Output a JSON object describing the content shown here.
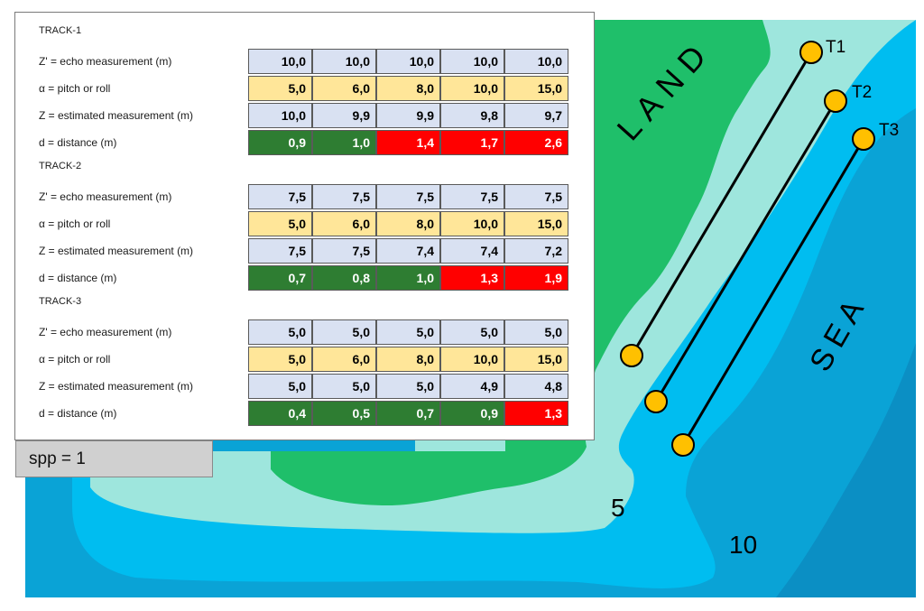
{
  "map": {
    "land_label": "LAND",
    "sea_label": "SEA",
    "contour_5_label": "5",
    "contour_10_label": "10",
    "tracks": [
      {
        "label": "T1"
      },
      {
        "label": "T2"
      },
      {
        "label": "T3"
      }
    ],
    "colors": {
      "land": "#1fbf6a",
      "shallow": "#9ee6dd",
      "mid": "#00bdf0",
      "deep": "#0aa3d6",
      "deepest": "#0b8fc4",
      "node": "#ffc000"
    }
  },
  "tables": [
    {
      "title": "TRACK-1",
      "rows": [
        {
          "label": "Z' = echo measurement (m)",
          "kind": "echo",
          "values": [
            "10,0",
            "10,0",
            "10,0",
            "10,0",
            "10,0"
          ]
        },
        {
          "label": "α = pitch or roll",
          "kind": "pitch",
          "values": [
            "5,0",
            "6,0",
            "8,0",
            "10,0",
            "15,0"
          ]
        },
        {
          "label": "Z = estimated measurement (m)",
          "kind": "est",
          "values": [
            "10,0",
            "9,9",
            "9,9",
            "9,8",
            "9,7"
          ]
        },
        {
          "label": "d = distance (m)",
          "kind": "dist",
          "values": [
            "0,9",
            "1,0",
            "1,4",
            "1,7",
            "2,6"
          ],
          "status": [
            "good",
            "good",
            "bad",
            "bad",
            "bad"
          ]
        }
      ]
    },
    {
      "title": "TRACK-2",
      "rows": [
        {
          "label": "Z' = echo measurement (m)",
          "kind": "echo",
          "values": [
            "7,5",
            "7,5",
            "7,5",
            "7,5",
            "7,5"
          ]
        },
        {
          "label": "α = pitch or roll",
          "kind": "pitch",
          "values": [
            "5,0",
            "6,0",
            "8,0",
            "10,0",
            "15,0"
          ]
        },
        {
          "label": "Z = estimated measurement (m)",
          "kind": "est",
          "values": [
            "7,5",
            "7,5",
            "7,4",
            "7,4",
            "7,2"
          ]
        },
        {
          "label": "d = distance (m)",
          "kind": "dist",
          "values": [
            "0,7",
            "0,8",
            "1,0",
            "1,3",
            "1,9"
          ],
          "status": [
            "good",
            "good",
            "good",
            "bad",
            "bad"
          ]
        }
      ]
    },
    {
      "title": "TRACK-3",
      "rows": [
        {
          "label": "Z' = echo measurement (m)",
          "kind": "echo",
          "values": [
            "5,0",
            "5,0",
            "5,0",
            "5,0",
            "5,0"
          ]
        },
        {
          "label": "α = pitch or roll",
          "kind": "pitch",
          "values": [
            "5,0",
            "6,0",
            "8,0",
            "10,0",
            "15,0"
          ]
        },
        {
          "label": "Z = estimated measurement (m)",
          "kind": "est",
          "values": [
            "5,0",
            "5,0",
            "5,0",
            "4,9",
            "4,8"
          ]
        },
        {
          "label": "d = distance (m)",
          "kind": "dist",
          "values": [
            "0,4",
            "0,5",
            "0,7",
            "0,9",
            "1,3"
          ],
          "status": [
            "good",
            "good",
            "good",
            "good",
            "bad"
          ]
        }
      ]
    }
  ],
  "spp_label": "spp = 1"
}
